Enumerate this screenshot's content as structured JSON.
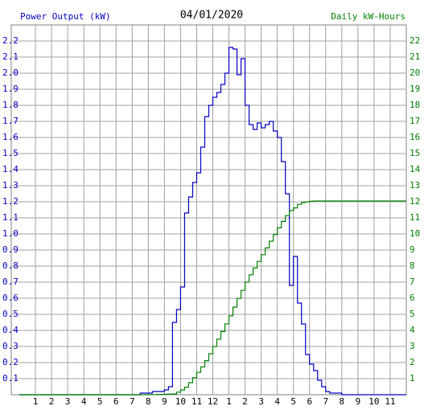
{
  "chart_data": {
    "type": "step",
    "title": "04/01/2020",
    "y_label": "Power Output (kW)",
    "y2_label": "Daily kW-Hours",
    "x": [
      0,
      7.5,
      7.75,
      8,
      8.25,
      8.5,
      8.75,
      9,
      9.25,
      9.5,
      9.75,
      10,
      10.25,
      10.5,
      10.75,
      11,
      11.25,
      11.5,
      11.75,
      12,
      12.25,
      12.5,
      12.75,
      13,
      13.25,
      13.5,
      13.75,
      14,
      14.25,
      14.5,
      14.75,
      15,
      15.25,
      15.5,
      15.75,
      16,
      16.25,
      16.5,
      16.75,
      17,
      17.25,
      17.5,
      17.75,
      18,
      18.25,
      18.5,
      18.75,
      19,
      19.25,
      19.5,
      19.75,
      20,
      24
    ],
    "series": [
      {
        "name": "Power Output (kW)",
        "color": "#0000c0",
        "axis": "y",
        "values": [
          0,
          0.01,
          0.01,
          0.01,
          0.02,
          0.02,
          0.02,
          0.03,
          0.05,
          0.45,
          0.53,
          0.67,
          1.13,
          1.23,
          1.32,
          1.38,
          1.54,
          1.73,
          1.8,
          1.85,
          1.88,
          1.93,
          2.0,
          2.16,
          2.15,
          1.99,
          2.09,
          1.8,
          1.68,
          1.65,
          1.69,
          1.66,
          1.68,
          1.7,
          1.64,
          1.6,
          1.45,
          1.25,
          0.68,
          0.86,
          0.57,
          0.44,
          0.25,
          0.19,
          0.15,
          0.09,
          0.05,
          0.02,
          0.01,
          0.01,
          0.01,
          0,
          0
        ]
      },
      {
        "name": "Daily kW-Hours",
        "color": "#008000",
        "axis": "y2",
        "values": [
          0,
          0,
          0,
          0.01,
          0.01,
          0.02,
          0.02,
          0.03,
          0.04,
          0.05,
          0.16,
          0.3,
          0.47,
          0.75,
          1.06,
          1.39,
          1.73,
          2.12,
          2.55,
          3.0,
          3.46,
          3.93,
          4.41,
          4.91,
          5.45,
          5.99,
          6.49,
          7.01,
          7.46,
          7.88,
          8.29,
          8.71,
          9.13,
          9.55,
          9.97,
          10.38,
          10.78,
          11.14,
          11.45,
          11.62,
          11.84,
          11.95,
          12.0,
          12.03,
          12.05,
          12.05,
          12.05,
          12.05,
          12.05,
          12.05,
          12.05,
          12.05,
          12.05
        ]
      }
    ],
    "xlim": [
      -0.5,
      24
    ],
    "xticks": [
      1,
      2,
      3,
      4,
      5,
      6,
      7,
      8,
      9,
      10,
      11,
      12,
      {
        "value": 13,
        "label": "1"
      },
      {
        "value": 14,
        "label": "2"
      },
      {
        "value": 15,
        "label": "3"
      },
      {
        "value": 16,
        "label": "4"
      },
      {
        "value": 17,
        "label": "5"
      },
      {
        "value": 18,
        "label": "6"
      },
      {
        "value": 19,
        "label": "7"
      },
      {
        "value": 20,
        "label": "8"
      },
      {
        "value": 21,
        "label": "9"
      },
      {
        "value": 22,
        "label": "10"
      },
      {
        "value": 23,
        "label": "11"
      }
    ],
    "ylim": [
      0,
      2.3
    ],
    "yticks": [
      0.1,
      0.2,
      0.3,
      0.4,
      0.5,
      0.6,
      0.7,
      0.8,
      0.9,
      {
        "value": 1,
        "label": "1.0"
      },
      1.1,
      1.2,
      1.3,
      1.4,
      1.5,
      1.6,
      1.7,
      1.8,
      1.9,
      {
        "value": 2,
        "label": "2.0"
      },
      2.1,
      2.2
    ],
    "y2lim": [
      0,
      23
    ],
    "y2ticks": [
      1,
      2,
      3,
      4,
      5,
      6,
      7,
      8,
      9,
      10,
      11,
      12,
      13,
      14,
      15,
      16,
      17,
      18,
      19,
      20,
      21,
      22
    ],
    "grid": true
  }
}
